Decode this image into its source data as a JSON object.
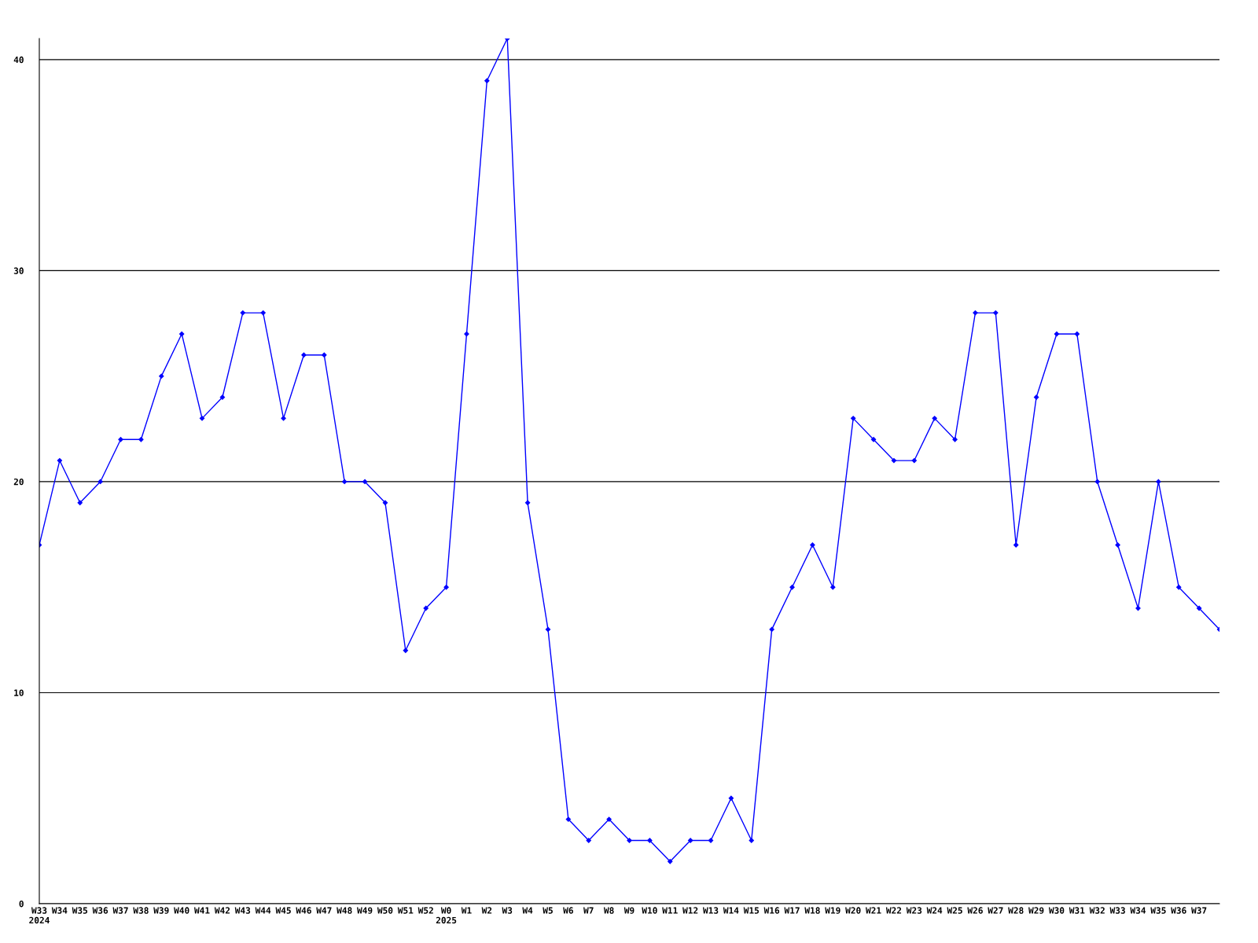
{
  "chart_data": {
    "type": "line",
    "categories": [
      "W33\n2024",
      "W34",
      "W35",
      "W36",
      "W37",
      "W38",
      "W39",
      "W40",
      "W41",
      "W42",
      "W43",
      "W44",
      "W45",
      "W46",
      "W47",
      "W48",
      "W49",
      "W50",
      "W51",
      "W52",
      "W0\n2025",
      "W1",
      "W2",
      "W3",
      "W4",
      "W5",
      "W6",
      "W7",
      "W8",
      "W9",
      "W10",
      "W11",
      "W12",
      "W13",
      "W14",
      "W15",
      "W16",
      "W17",
      "W18",
      "W19",
      "W20",
      "W21",
      "W22",
      "W23",
      "W24",
      "W25",
      "W26",
      "W27",
      "W28",
      "W29",
      "W30",
      "W31",
      "W32",
      "W33",
      "W34",
      "W35",
      "W36",
      "W37",
      null
    ],
    "series": [
      {
        "color": "#0000ff",
        "values": [
          17,
          21,
          19,
          20,
          22,
          22,
          25,
          27,
          23,
          24,
          28,
          28,
          23,
          26,
          26,
          20,
          20,
          19,
          12,
          14,
          15,
          27,
          39,
          41,
          19,
          13,
          4,
          3,
          4,
          3,
          3,
          2,
          3,
          3,
          5,
          3,
          13,
          15,
          17,
          15,
          23,
          22,
          21,
          21,
          23,
          22,
          28,
          28,
          17,
          24,
          27,
          27,
          20,
          17,
          14,
          20,
          15,
          14,
          13
        ]
      }
    ],
    "ylim": [
      0,
      41
    ],
    "yticks": [
      0,
      10,
      20,
      30,
      40
    ],
    "grid": "y",
    "marker": "diamond",
    "line_style": "solid",
    "legend": false
  }
}
